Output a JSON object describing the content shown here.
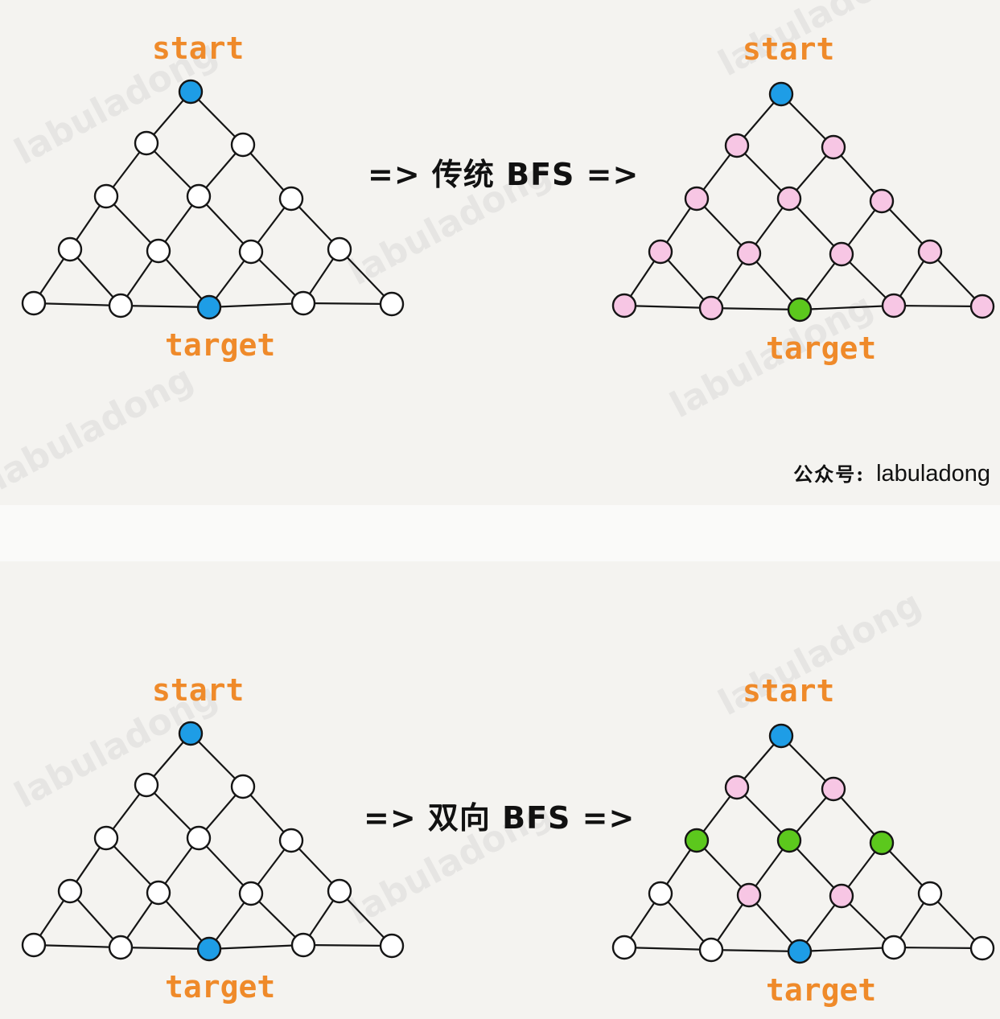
{
  "labels": {
    "start": "start",
    "target": "target"
  },
  "top_row": {
    "arrow_text": "=> 传统 BFS =>"
  },
  "bottom_row": {
    "arrow_text": "=> 双向 BFS =>"
  },
  "credit": {
    "brand": "公众号:",
    "name": "labuladong"
  },
  "watermark": "labuladong",
  "colors": {
    "blue": "#1e9de6",
    "pink": "#f7c6e4",
    "green": "#5cc81d",
    "white": "#ffffff",
    "label": "#ef8a2a"
  },
  "graphs": {
    "top_left": [
      "blue",
      "white",
      "white",
      "white",
      "white",
      "white",
      "white",
      "white",
      "white",
      "white",
      "white",
      "white",
      "blue",
      "white",
      "white"
    ],
    "top_right": [
      "blue",
      "pink",
      "pink",
      "pink",
      "pink",
      "pink",
      "pink",
      "pink",
      "pink",
      "pink",
      "pink",
      "pink",
      "green",
      "pink",
      "pink"
    ],
    "bottom_left": [
      "blue",
      "white",
      "white",
      "white",
      "white",
      "white",
      "white",
      "white",
      "white",
      "white",
      "white",
      "white",
      "blue",
      "white",
      "white"
    ],
    "bottom_right": [
      "blue",
      "pink",
      "pink",
      "green",
      "green",
      "green",
      "white",
      "pink",
      "pink",
      "white",
      "white",
      "white",
      "blue",
      "white",
      "white"
    ]
  }
}
